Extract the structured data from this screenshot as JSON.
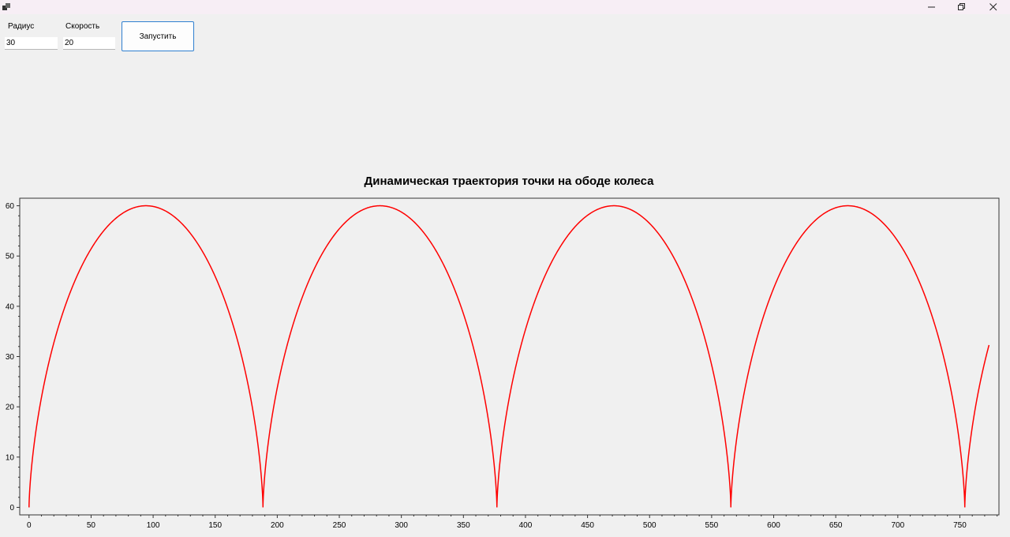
{
  "window": {
    "minimize_label": "Minimize",
    "restore_label": "Restore",
    "close_label": "Close"
  },
  "controls": {
    "radius_label": "Радиус",
    "radius_value": "30",
    "speed_label": "Скорость",
    "speed_value": "20",
    "run_label": "Запустить"
  },
  "colors": {
    "curve": "#ff0000",
    "accent": "#2f7fd0"
  },
  "chart_data": {
    "type": "line",
    "title": "Динамическая траектория точки на ободе колеса",
    "xlabel": "",
    "ylabel": "",
    "xlim": [
      -7.5,
      781.5
    ],
    "ylim": [
      -1.5,
      61.5
    ],
    "x_major_ticks": [
      0,
      50,
      100,
      150,
      200,
      250,
      300,
      350,
      400,
      450,
      500,
      550,
      600,
      650,
      700,
      750
    ],
    "y_major_ticks": [
      0,
      10,
      20,
      30,
      40,
      50,
      60
    ],
    "grid": false,
    "series": [
      {
        "curve": "cycloid",
        "radius": 30,
        "x_end": 773.5,
        "points": [
          [
            0,
            0
          ],
          [
            2,
            10
          ],
          [
            8.9,
            20
          ],
          [
            23.2,
            30
          ],
          [
            42.1,
            40
          ],
          [
            59.5,
            50
          ],
          [
            94.2,
            60
          ],
          [
            128.8,
            50
          ],
          [
            146.3,
            40
          ],
          [
            165.2,
            30
          ],
          [
            179.5,
            20
          ],
          [
            186.4,
            10
          ],
          [
            188.5,
            0
          ],
          [
            190.6,
            10
          ],
          [
            197.5,
            20
          ],
          [
            211.7,
            30
          ],
          [
            230.6,
            40
          ],
          [
            248.1,
            50
          ],
          [
            282.7,
            60
          ],
          [
            317.3,
            50
          ],
          [
            334.8,
            40
          ],
          [
            353.7,
            30
          ],
          [
            368,
            20
          ],
          [
            374.9,
            10
          ],
          [
            377,
            0
          ],
          [
            379.1,
            10
          ],
          [
            386,
            20
          ],
          [
            400.2,
            30
          ],
          [
            419.1,
            40
          ],
          [
            436.6,
            50
          ],
          [
            471.2,
            60
          ],
          [
            505.8,
            50
          ],
          [
            523.3,
            40
          ],
          [
            542.2,
            30
          ],
          [
            556.5,
            20
          ],
          [
            563.4,
            10
          ],
          [
            565.5,
            0
          ],
          [
            567.6,
            10
          ],
          [
            574.5,
            20
          ],
          [
            588.8,
            30
          ],
          [
            607.6,
            40
          ],
          [
            625.1,
            50
          ],
          [
            659.7,
            60
          ],
          [
            694.3,
            50
          ],
          [
            711.8,
            40
          ],
          [
            730.7,
            30
          ],
          [
            745,
            20
          ],
          [
            751.9,
            10
          ],
          [
            754,
            0
          ],
          [
            756.1,
            10
          ],
          [
            763,
            20
          ],
          [
            773.5,
            30.7
          ]
        ]
      }
    ]
  }
}
